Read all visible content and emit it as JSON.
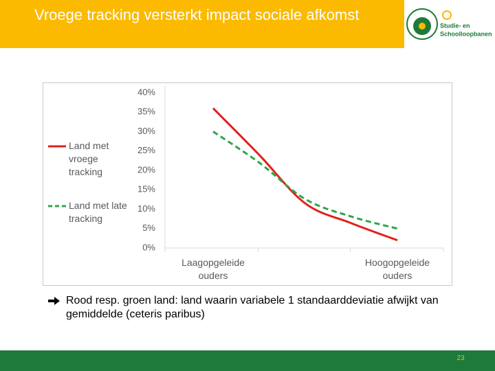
{
  "slide_title": "Vroege tracking versterkt impact sociale afkomst",
  "logo": {
    "line1": "Studie- en",
    "line2": "Schoolloopbanen"
  },
  "caption": "Rood resp. groen land: land waarin variabele 1 standaarddeviatie afwijkt van gemiddelde (ceteris paribus)",
  "page_number": "23",
  "chart_data": {
    "type": "line",
    "categories": [
      "Laagopgeleide ouders",
      null,
      null,
      null,
      "Hoogopgeleide ouders"
    ],
    "series": [
      {
        "name": "Land met vroege tracking",
        "color": "#e0201b",
        "dash": false,
        "values": [
          36,
          24,
          11.5,
          6.4,
          2
        ]
      },
      {
        "name": "Land met late tracking",
        "color": "#2ca54a",
        "dash": true,
        "values": [
          30,
          22,
          12.6,
          8.1,
          5
        ]
      }
    ],
    "ylim": [
      0,
      40
    ],
    "yticks": [
      {
        "value": 0,
        "label": "0%"
      },
      {
        "value": 5,
        "label": "5%"
      },
      {
        "value": 10,
        "label": "10%"
      },
      {
        "value": 15,
        "label": "15%"
      },
      {
        "value": 20,
        "label": "20%"
      },
      {
        "value": 25,
        "label": "25%"
      },
      {
        "value": 30,
        "label": "30%"
      },
      {
        "value": 35,
        "label": "35%"
      },
      {
        "value": 40,
        "label": "40%"
      }
    ],
    "grid": false,
    "legend": "left"
  }
}
